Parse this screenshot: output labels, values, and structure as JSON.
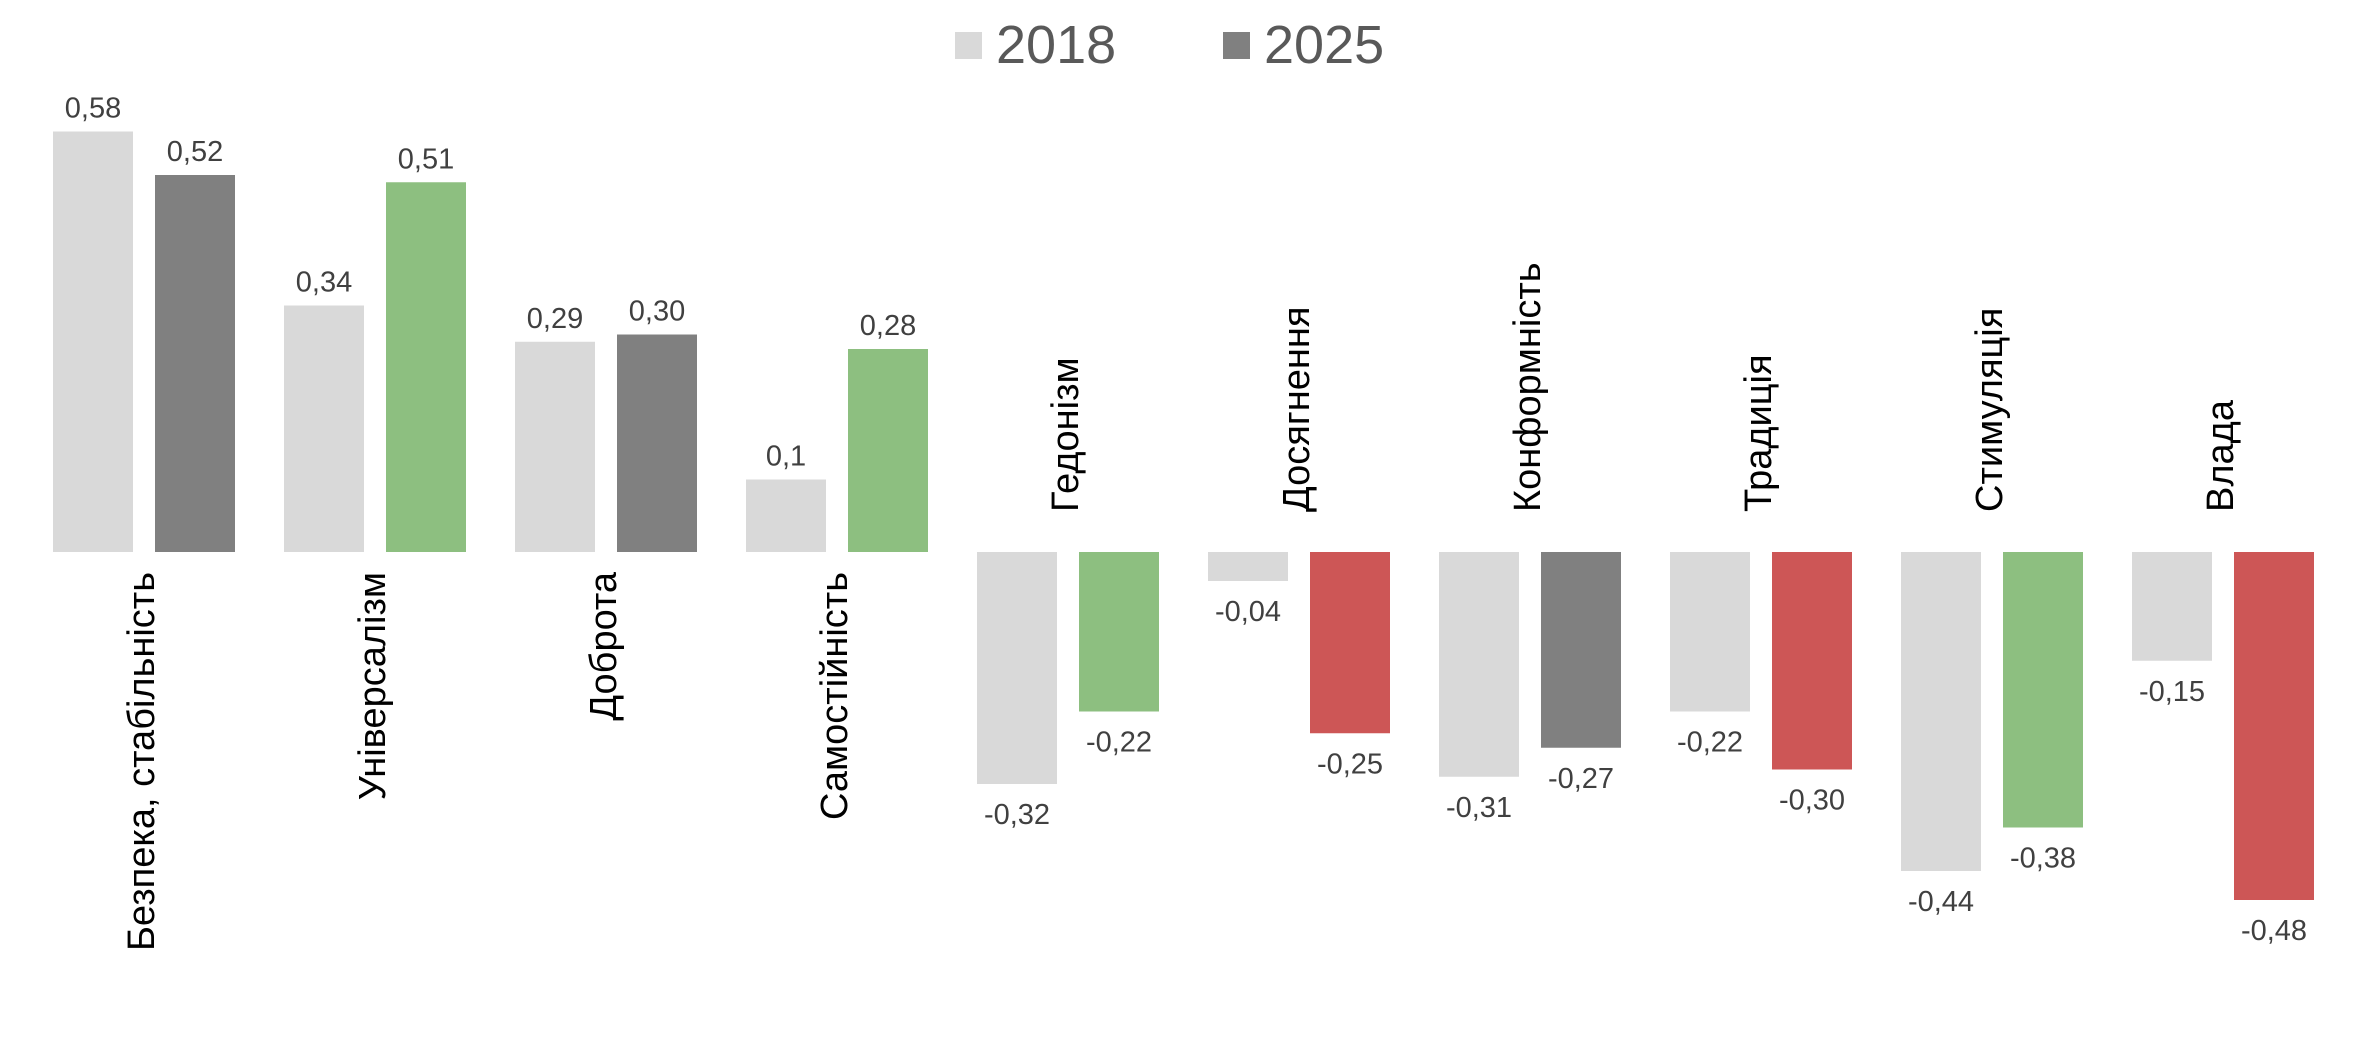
{
  "chart_data": {
    "type": "bar",
    "categories": [
      "Безпека, стабільність",
      "Універсалізм",
      "Доброта",
      "Самостійність",
      "Гедонізм",
      "Досягнення",
      "Конформність",
      "Традиція",
      "Стимуляція",
      "Влада"
    ],
    "series": [
      {
        "name": "2018",
        "color": "#d9d9d9",
        "values": [
          0.58,
          0.34,
          0.29,
          0.1,
          -0.32,
          -0.04,
          -0.31,
          -0.22,
          -0.44,
          -0.15
        ],
        "labels": [
          "0,58",
          "0,34",
          "0,29",
          "0,1",
          "-0,32",
          "-0,04",
          "-0,31",
          "-0,22",
          "-0,44",
          "-0,15"
        ]
      },
      {
        "name": "2025",
        "color": "#808080",
        "values": [
          0.52,
          0.51,
          0.3,
          0.28,
          -0.22,
          -0.25,
          -0.27,
          -0.3,
          -0.38,
          -0.48
        ],
        "labels": [
          "0,52",
          "0,51",
          "0,30",
          "0,28",
          "-0,22",
          "-0,25",
          "-0,27",
          "-0,30",
          "-0,38",
          "-0,48"
        ],
        "point_colors": [
          "#808080",
          "#8dbf80",
          "#808080",
          "#8dbf80",
          "#8dbf80",
          "#cd5656",
          "#808080",
          "#cd5656",
          "#8dbf80",
          "#cd5656"
        ]
      }
    ],
    "legend": {
      "position": "top-center",
      "items": [
        "2018",
        "2025"
      ]
    },
    "ylim": [
      -0.6,
      0.6
    ],
    "grid": false,
    "title": "",
    "xlabel": "",
    "ylabel": ""
  }
}
